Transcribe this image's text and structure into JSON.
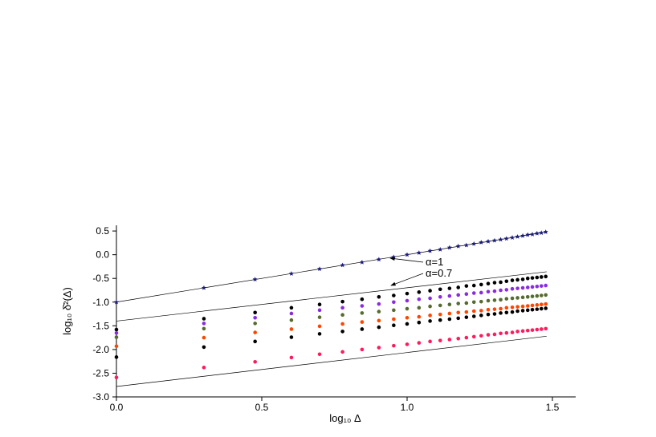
{
  "chart_data": {
    "type": "scatter",
    "xlabel": "log₁₀ Δ",
    "ylabel": "log₁₀ δ̄²(Δ)",
    "xlim": [
      0,
      1.58
    ],
    "ylim": [
      -3.0,
      0.62
    ],
    "xticks": [
      {
        "value": 0,
        "label": "0.0"
      },
      0.5,
      {
        "value": 1,
        "label": "1.0"
      },
      1.5
    ],
    "yticks": [
      0.5,
      {
        "value": 0,
        "label": "0.0"
      },
      -0.5,
      {
        "value": -1,
        "label": "-1.0"
      },
      -1.5,
      {
        "value": -2,
        "label": "-2.0"
      },
      -2.5,
      {
        "value": -3,
        "label": "-3.0"
      }
    ],
    "x": [
      0,
      0.301,
      0.477,
      0.602,
      0.699,
      0.778,
      0.845,
      0.903,
      0.954,
      1.0,
      1.041,
      1.079,
      1.114,
      1.146,
      1.176,
      1.204,
      1.23,
      1.255,
      1.279,
      1.301,
      1.322,
      1.342,
      1.362,
      1.38,
      1.398,
      1.415,
      1.431,
      1.447,
      1.462,
      1.477
    ],
    "series": [
      {
        "color": "#1a1a80",
        "marker": "star",
        "values": [
          -1,
          -0.7,
          -0.52,
          -0.4,
          -0.3,
          -0.22,
          -0.16,
          -0.1,
          -0.05,
          0,
          0.04,
          0.08,
          0.11,
          0.15,
          0.18,
          0.2,
          0.23,
          0.26,
          0.28,
          0.3,
          0.32,
          0.34,
          0.36,
          0.38,
          0.4,
          0.42,
          0.43,
          0.45,
          0.46,
          0.48
        ]
      },
      {
        "color": "#000000",
        "marker": "circle",
        "values": [
          -1.58,
          -1.35,
          -1.22,
          -1.12,
          -1.05,
          -0.99,
          -0.94,
          -0.89,
          -0.86,
          -0.82,
          -0.79,
          -0.76,
          -0.73,
          -0.71,
          -0.69,
          -0.66,
          -0.65,
          -0.63,
          -0.61,
          -0.59,
          -0.58,
          -0.56,
          -0.54,
          -0.53,
          -0.52,
          -0.5,
          -0.49,
          -0.48,
          -0.47,
          -0.46
        ]
      },
      {
        "color": "#8a2be2",
        "marker": "circle",
        "values": [
          -1.65,
          -1.45,
          -1.33,
          -1.24,
          -1.17,
          -1.12,
          -1.08,
          -1.04,
          -1.0,
          -0.97,
          -0.94,
          -0.92,
          -0.89,
          -0.87,
          -0.85,
          -0.83,
          -0.81,
          -0.8,
          -0.78,
          -0.77,
          -0.75,
          -0.74,
          -0.72,
          -0.71,
          -0.7,
          -0.69,
          -0.68,
          -0.67,
          -0.66,
          -0.65
        ]
      },
      {
        "color": "#556b2f",
        "marker": "circle",
        "values": [
          -1.74,
          -1.56,
          -1.45,
          -1.38,
          -1.32,
          -1.27,
          -1.23,
          -1.2,
          -1.17,
          -1.14,
          -1.12,
          -1.09,
          -1.07,
          -1.05,
          -1.03,
          -1.02,
          -1.0,
          -0.99,
          -0.97,
          -0.96,
          -0.95,
          -0.93,
          -0.92,
          -0.91,
          -0.9,
          -0.89,
          -0.88,
          -0.87,
          -0.86,
          -0.85
        ]
      },
      {
        "color": "#ff4500",
        "marker": "circle",
        "values": [
          -1.93,
          -1.75,
          -1.64,
          -1.57,
          -1.51,
          -1.46,
          -1.42,
          -1.39,
          -1.36,
          -1.33,
          -1.31,
          -1.28,
          -1.26,
          -1.24,
          -1.22,
          -1.21,
          -1.19,
          -1.18,
          -1.16,
          -1.15,
          -1.14,
          -1.12,
          -1.11,
          -1.1,
          -1.09,
          -1.08,
          -1.07,
          -1.06,
          -1.05,
          -1.04
        ]
      },
      {
        "color": "#000000",
        "marker": "circle",
        "values": [
          -2.16,
          -1.95,
          -1.83,
          -1.74,
          -1.67,
          -1.62,
          -1.57,
          -1.53,
          -1.49,
          -1.46,
          -1.43,
          -1.4,
          -1.38,
          -1.36,
          -1.34,
          -1.32,
          -1.3,
          -1.28,
          -1.26,
          -1.25,
          -1.23,
          -1.22,
          -1.21,
          -1.19,
          -1.18,
          -1.17,
          -1.16,
          -1.15,
          -1.14,
          -1.13
        ]
      },
      {
        "color": "#ff1a5e",
        "marker": "circle",
        "values": [
          -2.59,
          -2.38,
          -2.26,
          -2.17,
          -2.1,
          -2.05,
          -2.0,
          -1.96,
          -1.92,
          -1.89,
          -1.86,
          -1.83,
          -1.81,
          -1.79,
          -1.77,
          -1.75,
          -1.73,
          -1.71,
          -1.69,
          -1.68,
          -1.66,
          -1.65,
          -1.64,
          -1.62,
          -1.61,
          -1.6,
          -1.59,
          -1.58,
          -1.57,
          -1.56
        ]
      }
    ],
    "lines": [
      {
        "x": [
          0,
          1.48
        ],
        "values": [
          -1.0,
          0.48
        ]
      },
      {
        "x": [
          0,
          1.48
        ],
        "values": [
          -1.4,
          -0.36
        ]
      },
      {
        "x": [
          0,
          1.48
        ],
        "values": [
          -2.78,
          -1.72
        ]
      }
    ],
    "annotations": [
      "α=1",
      "α=0.7"
    ]
  }
}
